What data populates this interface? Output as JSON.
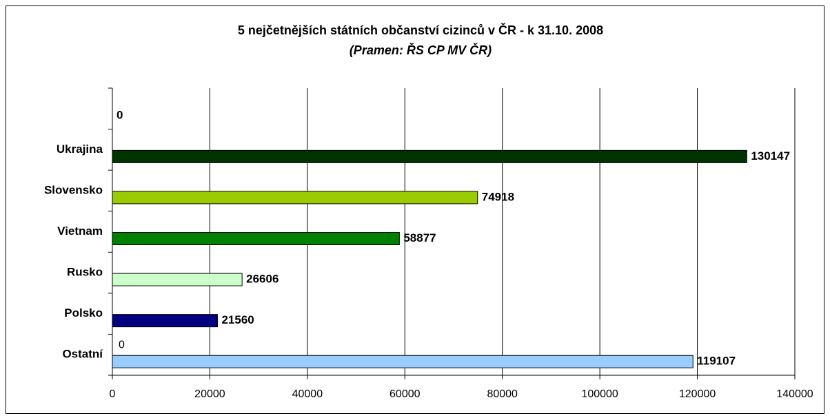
{
  "chart_data": {
    "type": "barh",
    "title": "5 nejčetnějších státních občanství cizinců v ČR - k 31.10. 2008",
    "subtitle": "(Pramen:  ŘS CP MV ČR)",
    "categories": [
      null,
      "Ukrajina",
      "Slovensko",
      "Vietnam",
      "Rusko",
      "Polsko",
      "Ostatní"
    ],
    "values": [
      0,
      130147,
      74918,
      58877,
      26606,
      21560,
      119107
    ],
    "colors": [
      null,
      "#003300",
      "#99cc00",
      "#008000",
      "#ccffcc",
      "#000080",
      "#99ccff"
    ],
    "annotation": "0",
    "xlim": [
      0,
      140000
    ],
    "xticks": [
      0,
      20000,
      40000,
      60000,
      80000,
      100000,
      120000,
      140000
    ],
    "grid": true
  }
}
